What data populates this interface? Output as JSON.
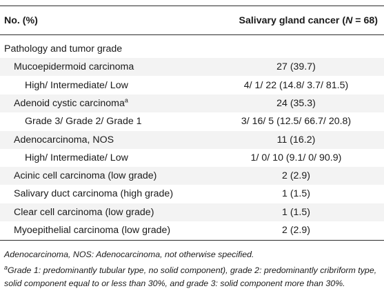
{
  "header": {
    "col1": "No. (%)",
    "col2_prefix": "Salivary gland cancer (",
    "col2_n": "N",
    "col2_suffix": " = 68)"
  },
  "rows": [
    {
      "label": "Pathology and tumor grade",
      "value": "",
      "indent": 0
    },
    {
      "label": "Mucoepidermoid carcinoma",
      "value": "27 (39.7)",
      "indent": 1
    },
    {
      "label": "High/ Intermediate/ Low",
      "value": "4/ 1/ 22 (14.8/ 3.7/ 81.5)",
      "indent": 2
    },
    {
      "label": "Adenoid cystic carcinoma",
      "sup": "a",
      "value": "24 (35.3)",
      "indent": 1
    },
    {
      "label": "Grade 3/ Grade 2/ Grade 1",
      "value": "3/ 16/ 5 (12.5/ 66.7/ 20.8)",
      "indent": 2
    },
    {
      "label": "Adenocarcinoma, NOS",
      "value": "11 (16.2)",
      "indent": 1
    },
    {
      "label": "High/ Intermediate/ Low",
      "value": "1/ 0/ 10 (9.1/ 0/ 90.9)",
      "indent": 2
    },
    {
      "label": "Acinic cell carcinoma (low grade)",
      "value": "2 (2.9)",
      "indent": 1
    },
    {
      "label": "Salivary duct carcinoma (high grade)",
      "value": "1 (1.5)",
      "indent": 1
    },
    {
      "label": "Clear cell carcinoma (low grade)",
      "value": "1 (1.5)",
      "indent": 1
    },
    {
      "label": "Myoepithelial carcinoma (low grade)",
      "value": "2 (2.9)",
      "indent": 1
    }
  ],
  "footnotes": {
    "note1": "Adenocarcinoma, NOS: Adenocarcinoma, not otherwise specified.",
    "note2_sup": "a",
    "note2": "Grade 1: predominantly tubular type, no solid component), grade 2: predominantly cribriform type, solid component equal to or less than 30%, and grade 3: solid component more than 30%."
  }
}
